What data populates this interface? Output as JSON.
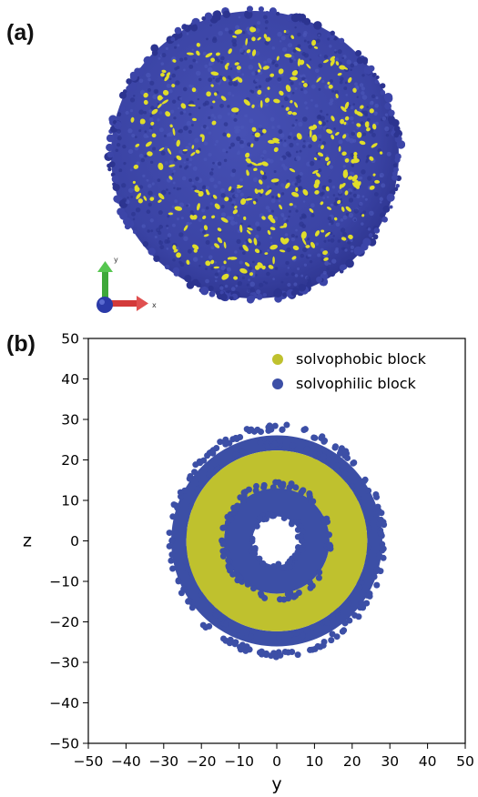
{
  "labels": {
    "a": "(a)",
    "b": "(b)"
  },
  "panel_a": {
    "axis_triad": {
      "x_label": "x",
      "y_label": "y"
    },
    "colors": {
      "shell": "#3c45a8",
      "shell_dark": "#2c3490",
      "patch": "#e0dd2a"
    }
  },
  "colors": {
    "solvophobic": "#bfc12e",
    "solvophilic": "#3c4fa6"
  },
  "chart_data": {
    "type": "scatter",
    "xlabel": "y",
    "ylabel": "z",
    "xlim": [
      -50,
      50
    ],
    "ylim": [
      -50,
      50
    ],
    "xticks": [
      -50,
      -40,
      -30,
      -20,
      -10,
      0,
      10,
      20,
      30,
      40,
      50
    ],
    "yticks": [
      -50,
      -40,
      -30,
      -20,
      -10,
      0,
      10,
      20,
      30,
      40,
      50
    ],
    "grid": false,
    "legend_position": "top-right",
    "series": [
      {
        "name": "solvophilic block",
        "color": "#3c4fa6",
        "region": "outer shell annulus",
        "r_inner": 24,
        "r_outer": 28,
        "center": [
          0,
          0
        ]
      },
      {
        "name": "solvophobic block",
        "color": "#bfc12e",
        "region": "middle annulus",
        "r_inner": 14,
        "r_outer": 24,
        "center": [
          0,
          0
        ]
      },
      {
        "name": "solvophilic block",
        "color": "#3c4fa6",
        "region": "inner shell annulus",
        "r_inner": 6.5,
        "r_outer": 14,
        "center": [
          0,
          0
        ]
      }
    ],
    "legend": [
      {
        "label": "solvophobic block",
        "color": "#bfc12e"
      },
      {
        "label": "solvophilic block",
        "color": "#3c4fa6"
      }
    ]
  }
}
